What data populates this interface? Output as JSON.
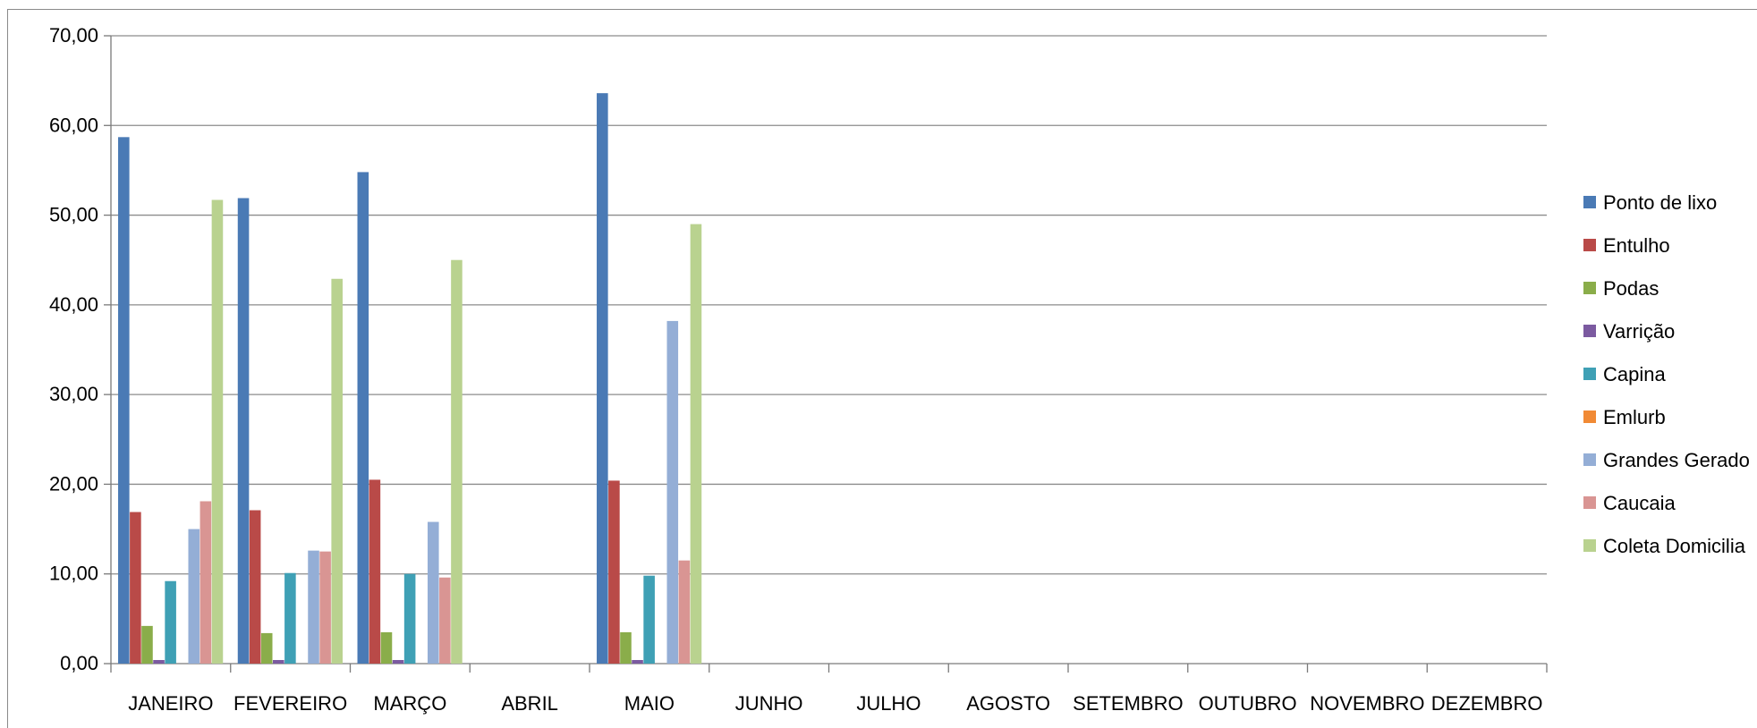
{
  "chart_data": {
    "type": "bar",
    "categories": [
      "JANEIRO",
      "FEVEREIRO",
      "MARÇO",
      "ABRIL",
      "MAIO",
      "JUNHO",
      "JULHO",
      "AGOSTO",
      "SETEMBRO",
      "OUTUBRO",
      "NOVEMBRO",
      "DEZEMBRO"
    ],
    "y_ticks": [
      "0,00",
      "10,00",
      "20,00",
      "30,00",
      "40,00",
      "50,00",
      "60,00",
      "70,00"
    ],
    "ylim": [
      0,
      70
    ],
    "grid": true,
    "legend_position": "right",
    "series": [
      {
        "name": "Ponto de lixo",
        "color": "#4a7ab5",
        "values": [
          58.7,
          51.9,
          54.8,
          0,
          63.6,
          0,
          0,
          0,
          0,
          0,
          0,
          0
        ]
      },
      {
        "name": "Entulho",
        "color": "#b94a48",
        "values": [
          16.9,
          17.1,
          20.5,
          0,
          20.4,
          0,
          0,
          0,
          0,
          0,
          0,
          0
        ]
      },
      {
        "name": "Podas",
        "color": "#8aad4a",
        "values": [
          4.2,
          3.4,
          3.5,
          0,
          3.5,
          0,
          0,
          0,
          0,
          0,
          0,
          0
        ]
      },
      {
        "name": "Varrição",
        "color": "#7b5aa0",
        "values": [
          0.4,
          0.4,
          0.4,
          0,
          0.4,
          0,
          0,
          0,
          0,
          0,
          0,
          0
        ]
      },
      {
        "name": "Capina",
        "color": "#3fa0b5",
        "values": [
          9.2,
          10.1,
          10.0,
          0,
          9.8,
          0,
          0,
          0,
          0,
          0,
          0,
          0
        ]
      },
      {
        "name": "Emlurb",
        "color": "#f18a35",
        "values": [
          0,
          0,
          0,
          0,
          0,
          0,
          0,
          0,
          0,
          0,
          0,
          0
        ]
      },
      {
        "name": "Grandes Gerado",
        "color": "#94aed6",
        "values": [
          15.0,
          12.6,
          15.8,
          0,
          38.2,
          0,
          0,
          0,
          0,
          0,
          0,
          0
        ]
      },
      {
        "name": "Caucaia",
        "color": "#d99593",
        "values": [
          18.1,
          12.5,
          9.6,
          0,
          11.5,
          0,
          0,
          0,
          0,
          0,
          0,
          0
        ]
      },
      {
        "name": "Coleta Domicilia",
        "color": "#b9d28f",
        "values": [
          51.7,
          42.9,
          45.0,
          0,
          49.0,
          0,
          0,
          0,
          0,
          0,
          0,
          0
        ]
      }
    ]
  }
}
